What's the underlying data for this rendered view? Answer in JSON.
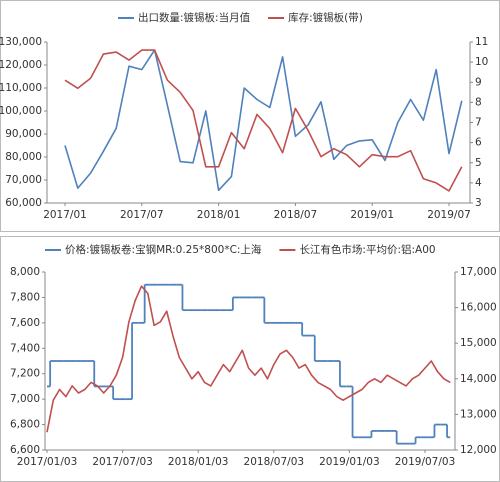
{
  "chart_data": [
    {
      "type": "line",
      "categories": [
        "2017/01",
        null,
        null,
        null,
        null,
        null,
        "2017/07",
        null,
        null,
        null,
        null,
        null,
        "2018/01",
        null,
        null,
        null,
        null,
        null,
        "2018/07",
        null,
        null,
        null,
        null,
        null,
        "2019/01",
        null,
        null,
        null,
        null,
        null,
        "2019/07",
        null
      ],
      "series": [
        {
          "name": "出口数量:镀锡板:当月值",
          "color": "#4f81bd",
          "axis": "y",
          "values": [
            85000,
            66500,
            73000,
            82500,
            92500,
            119500,
            118000,
            126500,
            102500,
            78000,
            77500,
            100000,
            65500,
            71500,
            110000,
            105000,
            101500,
            123500,
            89000,
            94000,
            104000,
            79000,
            85000,
            87000,
            87500,
            78500,
            95000,
            105000,
            96000,
            118000,
            81500,
            104500
          ]
        },
        {
          "name": "库存:镀锡板(带)",
          "color": "#c0504d",
          "axis": "y2",
          "values": [
            9.1,
            8.7,
            9.2,
            10.4,
            10.5,
            10.1,
            10.6,
            10.6,
            9.1,
            8.5,
            7.6,
            4.8,
            4.8,
            6.5,
            5.7,
            7.4,
            6.7,
            5.5,
            7.7,
            6.6,
            5.3,
            5.7,
            5.4,
            4.8,
            5.4,
            5.3,
            5.3,
            5.6,
            4.2,
            4.0,
            3.6,
            4.8
          ]
        }
      ],
      "ylim": [
        60000,
        130000
      ],
      "yticks": [
        {
          "value": 60000,
          "label": "60,000"
        },
        {
          "value": 70000,
          "label": "70,000"
        },
        {
          "value": 80000,
          "label": "80,000"
        },
        {
          "value": 90000,
          "label": "90,000"
        },
        {
          "value": 100000,
          "label": "100,000"
        },
        {
          "value": 110000,
          "label": "110,000"
        },
        {
          "value": 120000,
          "label": "120,000"
        },
        {
          "value": 130000,
          "label": "130,000"
        }
      ],
      "y2lim": [
        3,
        11
      ],
      "y2ticks": [
        3,
        4,
        5,
        6,
        7,
        8,
        9,
        10,
        11
      ],
      "grid": false
    },
    {
      "type": "line",
      "categories": [
        "2017/01/03",
        null,
        null,
        null,
        null,
        null,
        null,
        null,
        null,
        null,
        null,
        null,
        "2017/07/03",
        null,
        null,
        null,
        null,
        null,
        null,
        null,
        null,
        null,
        null,
        null,
        "2018/01/03",
        null,
        null,
        null,
        null,
        null,
        null,
        null,
        null,
        null,
        null,
        null,
        "2018/07/03",
        null,
        null,
        null,
        null,
        null,
        null,
        null,
        null,
        null,
        null,
        null,
        "2019/01/03",
        null,
        null,
        null,
        null,
        null,
        null,
        null,
        null,
        null,
        null,
        null,
        "2019/07/03",
        null,
        null,
        null,
        null
      ],
      "series": [
        {
          "name": "价格:镀锡板卷:宝钢MR:0.25*800*C:上海",
          "color": "#4f81bd",
          "axis": "y",
          "step": true,
          "values": [
            7100,
            7300,
            7300,
            7300,
            7300,
            7300,
            7300,
            7300,
            7100,
            7100,
            7100,
            7000,
            7000,
            7000,
            7600,
            7600,
            7900,
            7900,
            7900,
            7900,
            7900,
            7900,
            7700,
            7700,
            7700,
            7700,
            7700,
            7700,
            7700,
            7700,
            7800,
            7800,
            7800,
            7800,
            7800,
            7600,
            7600,
            7600,
            7600,
            7600,
            7600,
            7500,
            7500,
            7300,
            7300,
            7300,
            7300,
            7100,
            7100,
            6700,
            6700,
            6700,
            6750,
            6750,
            6750,
            6750,
            6650,
            6650,
            6650,
            6700,
            6700,
            6700,
            6800,
            6800,
            6700
          ]
        },
        {
          "name": "长江有色市场:平均价:铝:A00",
          "color": "#c0504d",
          "axis": "y2",
          "values": [
            12500,
            13400,
            13700,
            13500,
            13800,
            13600,
            13700,
            13900,
            13800,
            13600,
            13800,
            14100,
            14600,
            15600,
            16200,
            16600,
            16400,
            15500,
            15600,
            15900,
            15200,
            14600,
            14300,
            14000,
            14200,
            13900,
            13800,
            14100,
            14400,
            14200,
            14500,
            14800,
            14300,
            14100,
            14300,
            14000,
            14400,
            14700,
            14800,
            14600,
            14300,
            14400,
            14100,
            13900,
            13800,
            13700,
            13500,
            13400,
            13500,
            13600,
            13700,
            13900,
            14000,
            13900,
            14100,
            14000,
            13900,
            13800,
            14000,
            14100,
            14300,
            14500,
            14200,
            14000,
            13900
          ]
        }
      ],
      "ylim": [
        6600,
        8000
      ],
      "yticks": [
        {
          "value": 6600,
          "label": "6,600"
        },
        {
          "value": 6800,
          "label": "6,800"
        },
        {
          "value": 7000,
          "label": "7,000"
        },
        {
          "value": 7200,
          "label": "7,200"
        },
        {
          "value": 7400,
          "label": "7,400"
        },
        {
          "value": 7600,
          "label": "7,600"
        },
        {
          "value": 7800,
          "label": "7,800"
        },
        {
          "value": 8000,
          "label": "8,000"
        }
      ],
      "y2lim": [
        12000,
        17000
      ],
      "y2ticks": [
        {
          "value": 12000,
          "label": "12,000"
        },
        {
          "value": 13000,
          "label": "13,000"
        },
        {
          "value": 14000,
          "label": "14,000"
        },
        {
          "value": 15000,
          "label": "15,000"
        },
        {
          "value": 16000,
          "label": "16,000"
        },
        {
          "value": 17000,
          "label": "17,000"
        }
      ],
      "grid": false
    }
  ]
}
